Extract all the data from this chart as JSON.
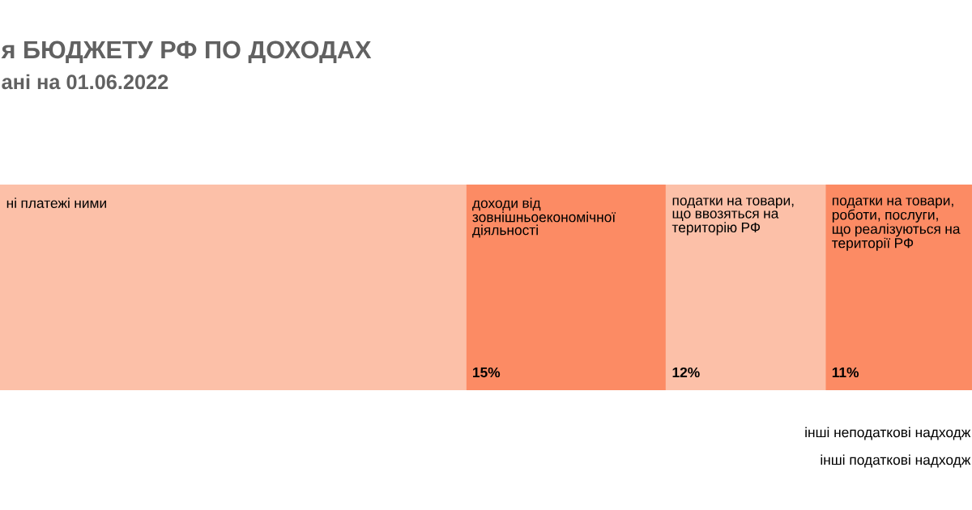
{
  "chart_data": {
    "type": "bar",
    "orientation": "horizontal",
    "stacked": true,
    "title": "я БЮДЖЕТУ РФ ПО ДОХОДАХ",
    "subtitle": "ані на 01.06.2022",
    "categories": [
      null
    ],
    "series": [
      {
        "name": "ні платежі ними",
        "color": "#fcc0a8",
        "values": [
          35
        ],
        "value_labels": [
          null
        ]
      },
      {
        "name": "доходи від зовнішньоекономічної діяльності",
        "color": "#fc8b64",
        "values": [
          15
        ],
        "value_labels": [
          "15%"
        ]
      },
      {
        "name": "податки на товари, що ввозяться на територію РФ",
        "color": "#fcc0a8",
        "values": [
          12
        ],
        "value_labels": [
          "12%"
        ]
      },
      {
        "name": "податки на товари, роботи, послуги, що реалізуються на території РФ",
        "color": "#fc8b64",
        "values": [
          11
        ],
        "value_labels": [
          "11%"
        ]
      }
    ],
    "annotations": [
      "інші неподаткові надходж",
      "інші податкові надходж"
    ]
  }
}
